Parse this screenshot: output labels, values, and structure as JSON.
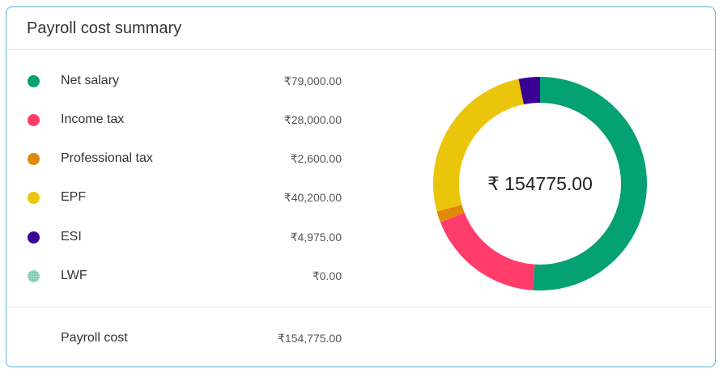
{
  "card": {
    "title": "Payroll cost summary"
  },
  "colors": {
    "net_salary": "#03a173",
    "income_tax": "#ff3c6a",
    "professional_tax": "#e08a0a",
    "epf": "#eac50c",
    "esi": "#3a0093",
    "lwf": "#7cc8b0",
    "card_border": "#55b4d4"
  },
  "legend": [
    {
      "label": "Net salary",
      "value": "₹79,000.00",
      "color": "#03a173"
    },
    {
      "label": "Income tax",
      "value": "₹28,000.00",
      "color": "#ff3c6a"
    },
    {
      "label": "Professional tax",
      "value": "₹2,600.00",
      "color": "#e08a0a"
    },
    {
      "label": "EPF",
      "value": "₹40,200.00",
      "color": "#eac50c"
    },
    {
      "label": "ESI",
      "value": "₹4,975.00",
      "color": "#3a0093"
    },
    {
      "label": "LWF",
      "value": "₹0.00",
      "color": "#7cc8b0"
    }
  ],
  "footer": {
    "label": "Payroll cost",
    "value": "₹154,775.00"
  },
  "donut": {
    "center_text": "₹ 154775.00",
    "segments": [
      {
        "name": "Net salary",
        "amount": 79000,
        "color": "#03a173"
      },
      {
        "name": "Income tax",
        "amount": 28000,
        "color": "#ff3c6a"
      },
      {
        "name": "Professional tax",
        "amount": 2600,
        "color": "#e08a0a"
      },
      {
        "name": "EPF",
        "amount": 40200,
        "color": "#eac50c"
      },
      {
        "name": "ESI",
        "amount": 4975,
        "color": "#3a0093"
      },
      {
        "name": "LWF",
        "amount": 0,
        "color": "#7cc8b0"
      }
    ]
  }
}
